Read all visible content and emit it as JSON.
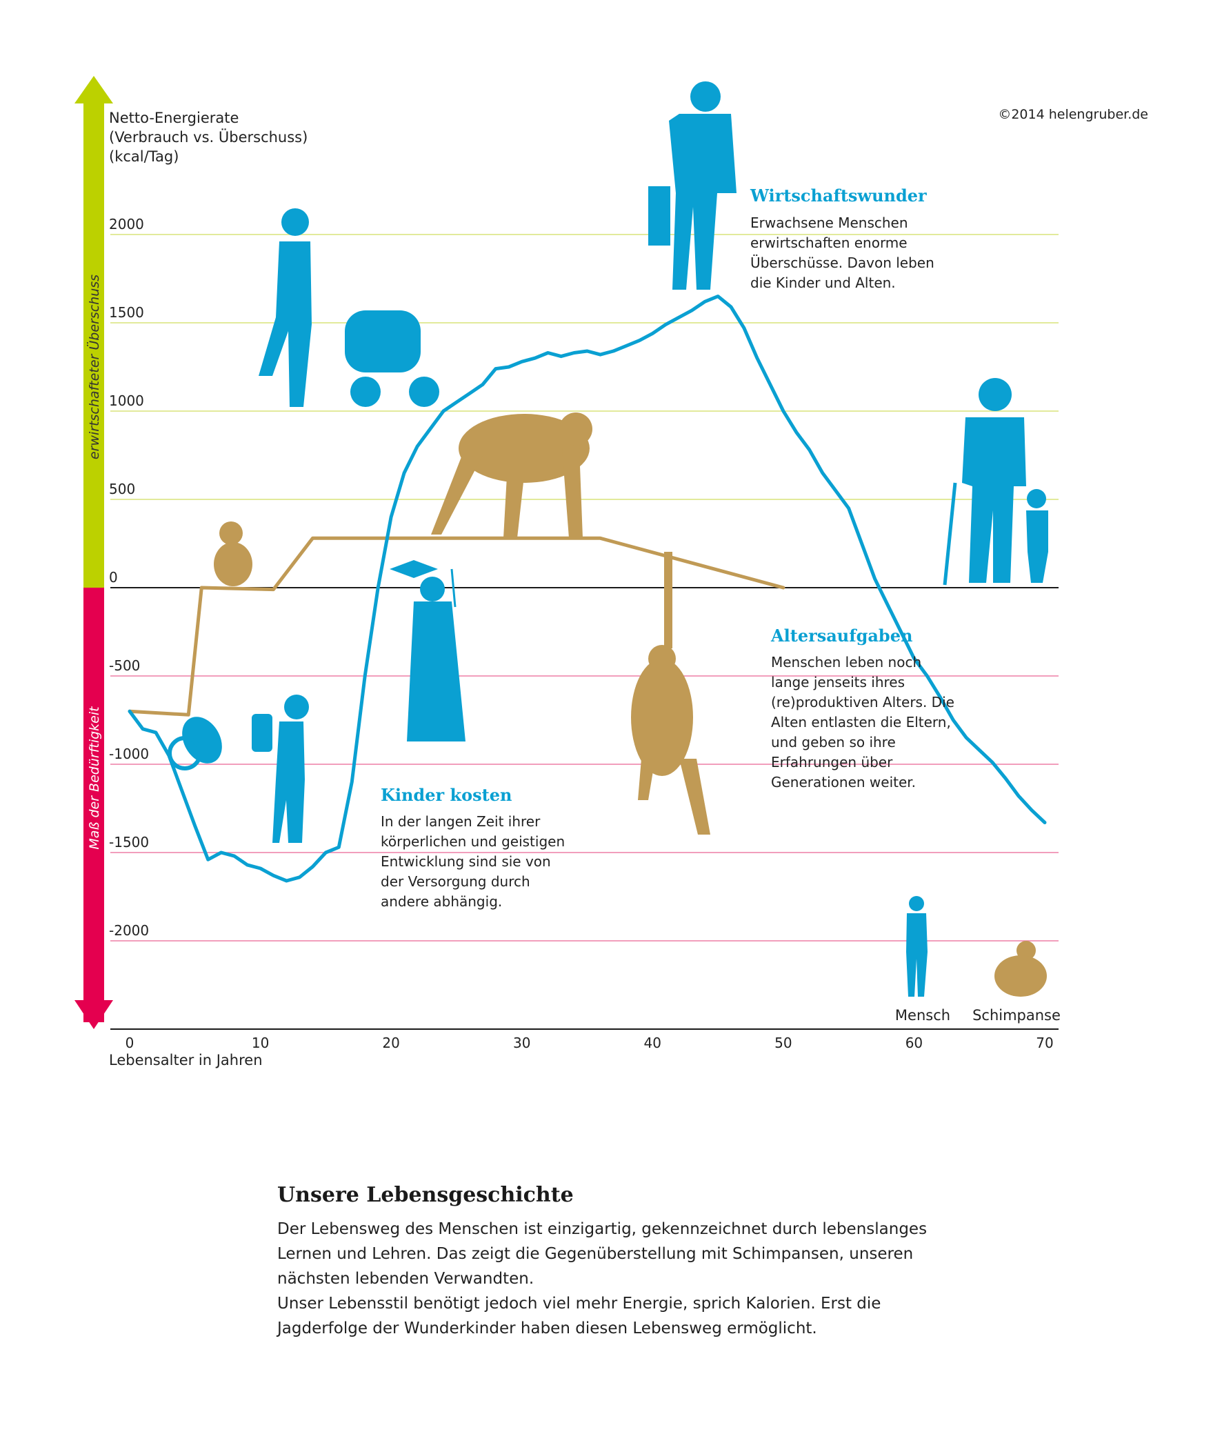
{
  "copyright": "©2014 helengruber.de",
  "axis_arrow": {
    "up_label": "erwirtschafteter Überschuss",
    "down_label": "Maß der Bedürftigkeit",
    "up_color": "#bcd100",
    "down_color": "#e4004f"
  },
  "chart_data": {
    "type": "line",
    "ylabel_lines": [
      "Netto-Energierate",
      "(Verbrauch vs. Überschuss)",
      "(kcal/Tag)"
    ],
    "xlabel": "Lebensalter in Jahren",
    "xlim": [
      0,
      70
    ],
    "ylim": [
      -2500,
      2800
    ],
    "x_ticks": [
      "0",
      "10",
      "20",
      "30",
      "40",
      "50",
      "60",
      "70"
    ],
    "y_ticks": [
      "2000",
      "1500",
      "1000",
      "500",
      "0",
      "-500",
      "-1000",
      "-1500",
      "-2000"
    ],
    "gridline_colors": {
      "positive": "#d8e47a",
      "negative": "#ee7fa5",
      "zero": "#1a1a1a"
    },
    "series": [
      {
        "name": "Mensch",
        "color": "#0aa0d2",
        "points": [
          [
            0,
            -700
          ],
          [
            1,
            -800
          ],
          [
            2,
            -820
          ],
          [
            3,
            -950
          ],
          [
            4,
            -1150
          ],
          [
            5,
            -1350
          ],
          [
            6,
            -1540
          ],
          [
            7,
            -1500
          ],
          [
            8,
            -1520
          ],
          [
            9,
            -1570
          ],
          [
            10,
            -1590
          ],
          [
            11,
            -1630
          ],
          [
            12,
            -1660
          ],
          [
            13,
            -1640
          ],
          [
            14,
            -1580
          ],
          [
            15,
            -1500
          ],
          [
            16,
            -1470
          ],
          [
            17,
            -1100
          ],
          [
            18,
            -500
          ],
          [
            19,
            0
          ],
          [
            20,
            400
          ],
          [
            21,
            650
          ],
          [
            22,
            800
          ],
          [
            23,
            900
          ],
          [
            24,
            1000
          ],
          [
            25,
            1050
          ],
          [
            26,
            1100
          ],
          [
            27,
            1150
          ],
          [
            28,
            1240
          ],
          [
            29,
            1250
          ],
          [
            30,
            1280
          ],
          [
            31,
            1300
          ],
          [
            32,
            1330
          ],
          [
            33,
            1310
          ],
          [
            34,
            1330
          ],
          [
            35,
            1340
          ],
          [
            36,
            1320
          ],
          [
            37,
            1340
          ],
          [
            38,
            1370
          ],
          [
            39,
            1400
          ],
          [
            40,
            1440
          ],
          [
            41,
            1490
          ],
          [
            42,
            1530
          ],
          [
            43,
            1570
          ],
          [
            44,
            1620
          ],
          [
            45,
            1650
          ],
          [
            46,
            1590
          ],
          [
            47,
            1470
          ],
          [
            48,
            1300
          ],
          [
            49,
            1150
          ],
          [
            50,
            1000
          ],
          [
            51,
            880
          ],
          [
            52,
            780
          ],
          [
            53,
            650
          ],
          [
            54,
            550
          ],
          [
            55,
            450
          ],
          [
            56,
            250
          ],
          [
            57,
            50
          ],
          [
            58,
            -100
          ],
          [
            59,
            -250
          ],
          [
            60,
            -400
          ],
          [
            61,
            -500
          ],
          [
            62,
            -620
          ],
          [
            63,
            -750
          ],
          [
            64,
            -850
          ],
          [
            65,
            -920
          ],
          [
            66,
            -990
          ],
          [
            67,
            -1080
          ],
          [
            68,
            -1180
          ],
          [
            69,
            -1260
          ],
          [
            70,
            -1330
          ]
        ]
      },
      {
        "name": "Schimpanse",
        "color": "#c09a55",
        "points": [
          [
            0,
            -700
          ],
          [
            4.5,
            -720
          ],
          [
            5.5,
            0
          ],
          [
            11,
            -10
          ],
          [
            14,
            280
          ],
          [
            36,
            280
          ],
          [
            50,
            0
          ]
        ]
      }
    ],
    "legend": [
      "Mensch",
      "Schimpanse"
    ],
    "legend_placement": "bottom-right"
  },
  "annotations": {
    "wirtschaftswunder": {
      "title": "Wirtschaftswunder",
      "lines": [
        "Erwachsene Menschen",
        "erwirtschaften enorme",
        "Überschüsse. Davon leben",
        "die Kinder und Alten."
      ]
    },
    "altersaufgaben": {
      "title": "Altersaufgaben",
      "lines": [
        "Menschen leben noch",
        "lange jenseits ihres",
        "(re)produktiven Alters. Die",
        "Alten entlasten die Eltern,",
        "und geben so ihre",
        "Erfahrungen über",
        "Generationen weiter."
      ]
    },
    "kinder_kosten": {
      "title": "Kinder kosten",
      "lines": [
        "In der langen Zeit ihrer",
        "körperlichen und geistigen",
        "Entwicklung sind sie von",
        "der Versorgung durch",
        "andere abhängig."
      ]
    }
  },
  "caption": {
    "title": "Unsere Lebensgeschichte",
    "paragraph1": "Der Lebensweg des Menschen ist einzigartig, gekennzeichnet durch lebenslanges Lernen und Lehren. Das zeigt die Gegenüberstellung mit Schimpansen, unseren nächsten lebenden Verwandten.",
    "paragraph2": "Unser Lebensstil benötigt jedoch viel mehr Energie, sprich Kalorien. Erst die Jagderfolge der Wunderkinder haben diesen Lebensweg ermöglicht."
  }
}
